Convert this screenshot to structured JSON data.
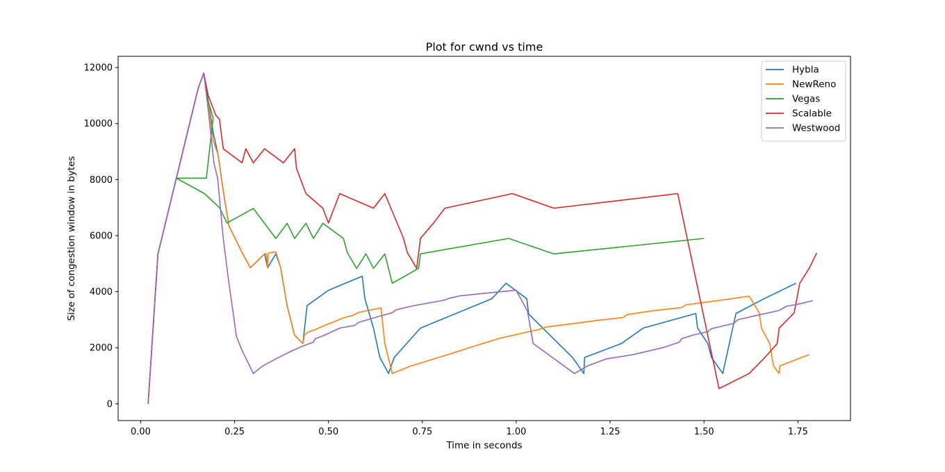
{
  "chart_data": {
    "type": "line",
    "title": "Plot for cwnd vs time",
    "xlabel": "Time in seconds",
    "ylabel": "Size of congestion window in bytes",
    "xlim": [
      -0.06,
      1.89
    ],
    "ylim": [
      -600,
      12400
    ],
    "xticks": [
      0.0,
      0.25,
      0.5,
      0.75,
      1.0,
      1.25,
      1.5,
      1.75
    ],
    "xtick_labels": [
      "0.00",
      "0.25",
      "0.50",
      "0.75",
      "1.00",
      "1.25",
      "1.50",
      "1.75"
    ],
    "yticks": [
      0,
      2000,
      4000,
      6000,
      8000,
      10000,
      12000
    ],
    "ytick_labels": [
      "0",
      "2000",
      "4000",
      "6000",
      "8000",
      "10000",
      "12000"
    ],
    "grid": false,
    "legend_position": "top-right",
    "series": [
      {
        "name": "Hybla",
        "color": "#1f77b4",
        "points": [
          [
            0.02,
            0
          ],
          [
            0.046,
            5350
          ],
          [
            0.095,
            8050
          ],
          [
            0.153,
            11250
          ],
          [
            0.168,
            11800
          ],
          [
            0.18,
            10800
          ],
          [
            0.193,
            9700
          ],
          [
            0.206,
            8900
          ],
          [
            0.22,
            7600
          ],
          [
            0.235,
            6350
          ],
          [
            0.27,
            5400
          ],
          [
            0.292,
            4850
          ],
          [
            0.33,
            5350
          ],
          [
            0.338,
            4850
          ],
          [
            0.36,
            5350
          ],
          [
            0.373,
            4850
          ],
          [
            0.39,
            3500
          ],
          [
            0.41,
            2450
          ],
          [
            0.432,
            2150
          ],
          [
            0.443,
            3500
          ],
          [
            0.5,
            4050
          ],
          [
            0.59,
            4550
          ],
          [
            0.597,
            3750
          ],
          [
            0.62,
            2700
          ],
          [
            0.637,
            1650
          ],
          [
            0.66,
            1080
          ],
          [
            0.675,
            1650
          ],
          [
            0.745,
            2700
          ],
          [
            0.935,
            3750
          ],
          [
            0.973,
            4300
          ],
          [
            1.028,
            3750
          ],
          [
            1.033,
            3200
          ],
          [
            1.15,
            1650
          ],
          [
            1.18,
            1080
          ],
          [
            1.182,
            1650
          ],
          [
            1.28,
            2150
          ],
          [
            1.338,
            2700
          ],
          [
            1.478,
            3220
          ],
          [
            1.483,
            2700
          ],
          [
            1.51,
            2150
          ],
          [
            1.52,
            1650
          ],
          [
            1.55,
            1080
          ],
          [
            1.585,
            3220
          ],
          [
            1.66,
            3750
          ],
          [
            1.745,
            4300
          ]
        ]
      },
      {
        "name": "NewReno",
        "color": "#ff7f0e",
        "points": [
          [
            0.02,
            0
          ],
          [
            0.046,
            5350
          ],
          [
            0.095,
            8050
          ],
          [
            0.153,
            11250
          ],
          [
            0.168,
            11800
          ],
          [
            0.18,
            10800
          ],
          [
            0.193,
            9400
          ],
          [
            0.206,
            8900
          ],
          [
            0.22,
            7600
          ],
          [
            0.235,
            6350
          ],
          [
            0.27,
            5400
          ],
          [
            0.292,
            4850
          ],
          [
            0.33,
            5350
          ],
          [
            0.335,
            5350
          ],
          [
            0.338,
            4850
          ],
          [
            0.34,
            5380
          ],
          [
            0.36,
            5420
          ],
          [
            0.373,
            4850
          ],
          [
            0.39,
            3500
          ],
          [
            0.41,
            2450
          ],
          [
            0.432,
            2150
          ],
          [
            0.436,
            2450
          ],
          [
            0.445,
            2550
          ],
          [
            0.465,
            2650
          ],
          [
            0.5,
            2850
          ],
          [
            0.52,
            2950
          ],
          [
            0.54,
            3070
          ],
          [
            0.565,
            3150
          ],
          [
            0.58,
            3260
          ],
          [
            0.64,
            3420
          ],
          [
            0.65,
            2150
          ],
          [
            0.67,
            1080
          ],
          [
            0.72,
            1350
          ],
          [
            0.81,
            1720
          ],
          [
            0.91,
            2150
          ],
          [
            0.96,
            2350
          ],
          [
            1.06,
            2650
          ],
          [
            1.08,
            2740
          ],
          [
            1.22,
            2980
          ],
          [
            1.285,
            3080
          ],
          [
            1.295,
            3180
          ],
          [
            1.37,
            3330
          ],
          [
            1.44,
            3430
          ],
          [
            1.452,
            3530
          ],
          [
            1.57,
            3740
          ],
          [
            1.62,
            3840
          ],
          [
            1.647,
            3250
          ],
          [
            1.653,
            2700
          ],
          [
            1.675,
            2150
          ],
          [
            1.685,
            1350
          ],
          [
            1.7,
            1080
          ],
          [
            1.702,
            1350
          ],
          [
            1.75,
            1600
          ],
          [
            1.78,
            1750
          ]
        ]
      },
      {
        "name": "Vegas",
        "color": "#2ca02c",
        "points": [
          [
            0.02,
            0
          ],
          [
            0.046,
            5350
          ],
          [
            0.095,
            8050
          ],
          [
            0.153,
            11250
          ],
          [
            0.168,
            11800
          ],
          [
            0.18,
            10800
          ],
          [
            0.193,
            10200
          ],
          [
            0.175,
            8050
          ],
          [
            0.095,
            8050
          ],
          [
            0.17,
            7500
          ],
          [
            0.21,
            7000
          ],
          [
            0.23,
            6450
          ],
          [
            0.3,
            6970
          ],
          [
            0.36,
            5900
          ],
          [
            0.39,
            6440
          ],
          [
            0.41,
            5900
          ],
          [
            0.44,
            6440
          ],
          [
            0.46,
            5900
          ],
          [
            0.485,
            6440
          ],
          [
            0.54,
            5900
          ],
          [
            0.55,
            5400
          ],
          [
            0.575,
            4830
          ],
          [
            0.6,
            5350
          ],
          [
            0.62,
            4830
          ],
          [
            0.65,
            5350
          ],
          [
            0.67,
            4300
          ],
          [
            0.74,
            4830
          ],
          [
            0.745,
            5350
          ],
          [
            0.98,
            5900
          ],
          [
            1.1,
            5350
          ],
          [
            1.5,
            5900
          ]
        ]
      },
      {
        "name": "Scalable",
        "color": "#d62728",
        "points": [
          [
            0.02,
            0
          ],
          [
            0.046,
            5350
          ],
          [
            0.095,
            8050
          ],
          [
            0.153,
            11250
          ],
          [
            0.168,
            11800
          ],
          [
            0.18,
            11000
          ],
          [
            0.2,
            10300
          ],
          [
            0.21,
            10150
          ],
          [
            0.22,
            9100
          ],
          [
            0.27,
            8600
          ],
          [
            0.28,
            9100
          ],
          [
            0.3,
            8600
          ],
          [
            0.33,
            9100
          ],
          [
            0.38,
            8600
          ],
          [
            0.41,
            9100
          ],
          [
            0.415,
            8400
          ],
          [
            0.44,
            7500
          ],
          [
            0.485,
            6980
          ],
          [
            0.5,
            6450
          ],
          [
            0.53,
            7500
          ],
          [
            0.62,
            6980
          ],
          [
            0.65,
            7500
          ],
          [
            0.7,
            5900
          ],
          [
            0.71,
            5400
          ],
          [
            0.735,
            4830
          ],
          [
            0.745,
            5900
          ],
          [
            0.78,
            6450
          ],
          [
            0.81,
            6980
          ],
          [
            0.99,
            7500
          ],
          [
            1.1,
            6980
          ],
          [
            1.43,
            7500
          ],
          [
            1.54,
            540
          ],
          [
            1.62,
            1080
          ],
          [
            1.66,
            1620
          ],
          [
            1.695,
            2150
          ],
          [
            1.7,
            2700
          ],
          [
            1.74,
            3240
          ],
          [
            1.755,
            4300
          ],
          [
            1.78,
            4830
          ],
          [
            1.8,
            5380
          ]
        ]
      },
      {
        "name": "Westwood",
        "color": "#9467bd",
        "points": [
          [
            0.02,
            0
          ],
          [
            0.046,
            5350
          ],
          [
            0.095,
            8050
          ],
          [
            0.153,
            11250
          ],
          [
            0.168,
            11800
          ],
          [
            0.18,
            10500
          ],
          [
            0.195,
            8600
          ],
          [
            0.205,
            8050
          ],
          [
            0.22,
            5900
          ],
          [
            0.235,
            4300
          ],
          [
            0.255,
            2400
          ],
          [
            0.27,
            1900
          ],
          [
            0.3,
            1080
          ],
          [
            0.325,
            1350
          ],
          [
            0.36,
            1600
          ],
          [
            0.4,
            1870
          ],
          [
            0.43,
            2050
          ],
          [
            0.46,
            2200
          ],
          [
            0.465,
            2320
          ],
          [
            0.49,
            2450
          ],
          [
            0.53,
            2700
          ],
          [
            0.57,
            2800
          ],
          [
            0.58,
            2900
          ],
          [
            0.63,
            3100
          ],
          [
            0.67,
            3250
          ],
          [
            0.68,
            3350
          ],
          [
            0.72,
            3480
          ],
          [
            0.81,
            3700
          ],
          [
            0.82,
            3760
          ],
          [
            0.85,
            3850
          ],
          [
            0.96,
            4000
          ],
          [
            1.0,
            4050
          ],
          [
            1.03,
            3300
          ],
          [
            1.045,
            2150
          ],
          [
            1.155,
            1080
          ],
          [
            1.19,
            1350
          ],
          [
            1.24,
            1600
          ],
          [
            1.31,
            1750
          ],
          [
            1.39,
            2000
          ],
          [
            1.435,
            2200
          ],
          [
            1.44,
            2320
          ],
          [
            1.47,
            2450
          ],
          [
            1.51,
            2570
          ],
          [
            1.52,
            2680
          ],
          [
            1.58,
            2870
          ],
          [
            1.59,
            3000
          ],
          [
            1.64,
            3150
          ],
          [
            1.7,
            3330
          ],
          [
            1.72,
            3480
          ],
          [
            1.75,
            3550
          ],
          [
            1.79,
            3680
          ]
        ]
      }
    ]
  }
}
